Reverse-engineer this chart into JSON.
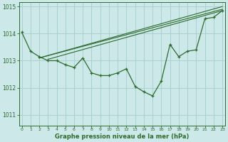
{
  "xlabel": "Graphe pression niveau de la mer (hPa)",
  "background_color": "#cce8e8",
  "grid_color": "#aad0d0",
  "line_color": "#2d6b2d",
  "x_values": [
    0,
    1,
    2,
    3,
    4,
    5,
    6,
    7,
    8,
    9,
    10,
    11,
    12,
    13,
    14,
    15,
    16,
    17,
    18,
    19,
    20,
    21,
    22,
    23
  ],
  "series1": [
    1014.05,
    1013.35,
    1013.15,
    1013.0,
    1013.0,
    1012.85,
    1012.75,
    1013.1,
    1012.55,
    1012.45,
    1012.45,
    1012.55,
    1012.7,
    1012.05,
    1011.85,
    1011.7,
    1012.25,
    1013.6,
    1013.15,
    1013.35,
    1013.4,
    1014.55,
    1014.6,
    1014.85
  ],
  "series2_x": [
    2,
    23
  ],
  "series2_y": [
    1013.1,
    1015.0
  ],
  "series3_x": [
    2,
    23
  ],
  "series3_y": [
    1013.1,
    1014.9
  ],
  "series4_x": [
    3,
    23
  ],
  "series4_y": [
    1013.05,
    1014.85
  ],
  "ylim": [
    1010.6,
    1015.15
  ],
  "yticks": [
    1011,
    1012,
    1013,
    1014,
    1015
  ],
  "xticks": [
    0,
    1,
    2,
    3,
    4,
    5,
    6,
    7,
    8,
    9,
    10,
    11,
    12,
    13,
    14,
    15,
    16,
    17,
    18,
    19,
    20,
    21,
    22,
    23
  ],
  "marker": "+"
}
